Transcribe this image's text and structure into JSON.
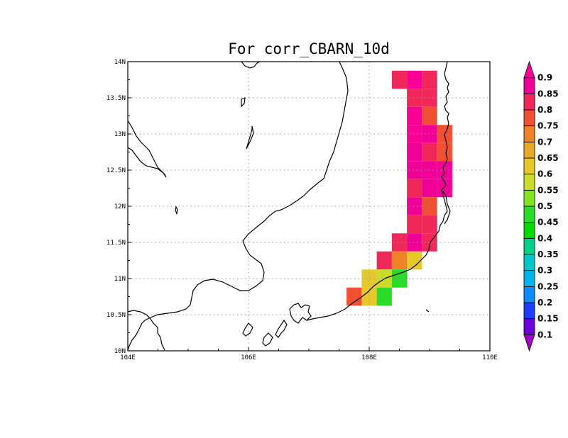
{
  "title": "For corr_CBARN_10d",
  "axes": {
    "x_ticks": [
      {
        "value": 104,
        "label": "104E"
      },
      {
        "value": 106,
        "label": "106E"
      },
      {
        "value": 108,
        "label": "108E"
      },
      {
        "value": 110,
        "label": "110E"
      }
    ],
    "y_ticks": [
      {
        "value": 10,
        "label": "10N"
      },
      {
        "value": 10.5,
        "label": "10.5N"
      },
      {
        "value": 11,
        "label": "11N"
      },
      {
        "value": 11.5,
        "label": "11.5N"
      },
      {
        "value": 12,
        "label": "12N"
      },
      {
        "value": 12.5,
        "label": "12.5N"
      },
      {
        "value": 13,
        "label": "13N"
      },
      {
        "value": 13.5,
        "label": "13.5N"
      },
      {
        "value": 14,
        "label": "14N"
      }
    ],
    "lon_range": [
      104,
      110
    ],
    "lat_range": [
      10,
      14
    ],
    "grid": true
  },
  "colorbar": {
    "levels": [
      "0.1",
      "0.15",
      "0.2",
      "0.25",
      "0.3",
      "0.35",
      "0.4",
      "0.45",
      "0.5",
      "0.55",
      "0.6",
      "0.65",
      "0.7",
      "0.75",
      "0.8",
      "0.85",
      "0.9"
    ],
    "colors": [
      "#a000c8",
      "#6e00dc",
      "#1e3cff",
      "#0a8cff",
      "#00b4f0",
      "#00c8c8",
      "#00d28c",
      "#00dc00",
      "#28dc28",
      "#82e61e",
      "#c8dc28",
      "#e6c828",
      "#e6aa28",
      "#f08228",
      "#f05032",
      "#f0285a",
      "#f00096",
      "#fa0096"
    ],
    "position": "right"
  },
  "chart_data": {
    "type": "heatmap",
    "title": "For corr_CBARN_10d",
    "xlabel": "",
    "ylabel": "",
    "xlim": [
      104,
      110
    ],
    "ylim": [
      10,
      14
    ],
    "cell_size_deg": 0.25,
    "cells": [
      {
        "lon": 108.5,
        "lat": 13.75,
        "value": 0.82
      },
      {
        "lon": 108.75,
        "lat": 13.75,
        "value": 0.9
      },
      {
        "lon": 109.0,
        "lat": 13.75,
        "value": 0.82
      },
      {
        "lon": 108.75,
        "lat": 13.5,
        "value": 0.82
      },
      {
        "lon": 109.0,
        "lat": 13.5,
        "value": 0.82
      },
      {
        "lon": 108.75,
        "lat": 13.25,
        "value": 0.9
      },
      {
        "lon": 109.0,
        "lat": 13.25,
        "value": 0.77
      },
      {
        "lon": 108.75,
        "lat": 13.0,
        "value": 0.9
      },
      {
        "lon": 109.0,
        "lat": 13.0,
        "value": 0.87
      },
      {
        "lon": 109.25,
        "lat": 13.0,
        "value": 0.77
      },
      {
        "lon": 108.75,
        "lat": 12.75,
        "value": 0.87
      },
      {
        "lon": 109.0,
        "lat": 12.75,
        "value": 0.82
      },
      {
        "lon": 109.25,
        "lat": 12.75,
        "value": 0.77
      },
      {
        "lon": 108.75,
        "lat": 12.5,
        "value": 0.87
      },
      {
        "lon": 109.0,
        "lat": 12.5,
        "value": 0.87
      },
      {
        "lon": 109.25,
        "lat": 12.5,
        "value": 0.87
      },
      {
        "lon": 108.75,
        "lat": 12.25,
        "value": 0.82
      },
      {
        "lon": 109.0,
        "lat": 12.25,
        "value": 0.87
      },
      {
        "lon": 109.25,
        "lat": 12.25,
        "value": 0.87
      },
      {
        "lon": 108.75,
        "lat": 12.0,
        "value": 0.87
      },
      {
        "lon": 109.0,
        "lat": 12.0,
        "value": 0.77
      },
      {
        "lon": 108.75,
        "lat": 11.75,
        "value": 0.82
      },
      {
        "lon": 109.0,
        "lat": 11.75,
        "value": 0.82
      },
      {
        "lon": 108.5,
        "lat": 11.5,
        "value": 0.82
      },
      {
        "lon": 108.75,
        "lat": 11.5,
        "value": 0.87
      },
      {
        "lon": 109.0,
        "lat": 11.5,
        "value": 0.82
      },
      {
        "lon": 108.25,
        "lat": 11.25,
        "value": 0.82
      },
      {
        "lon": 108.5,
        "lat": 11.25,
        "value": 0.72
      },
      {
        "lon": 108.75,
        "lat": 11.25,
        "value": 0.62
      },
      {
        "lon": 108.0,
        "lat": 11.0,
        "value": 0.62
      },
      {
        "lon": 108.25,
        "lat": 11.0,
        "value": 0.58
      },
      {
        "lon": 108.5,
        "lat": 11.0,
        "value": 0.47
      },
      {
        "lon": 107.75,
        "lat": 10.75,
        "value": 0.77
      },
      {
        "lon": 108.0,
        "lat": 10.75,
        "value": 0.62
      },
      {
        "lon": 108.25,
        "lat": 10.75,
        "value": 0.47
      }
    ]
  }
}
